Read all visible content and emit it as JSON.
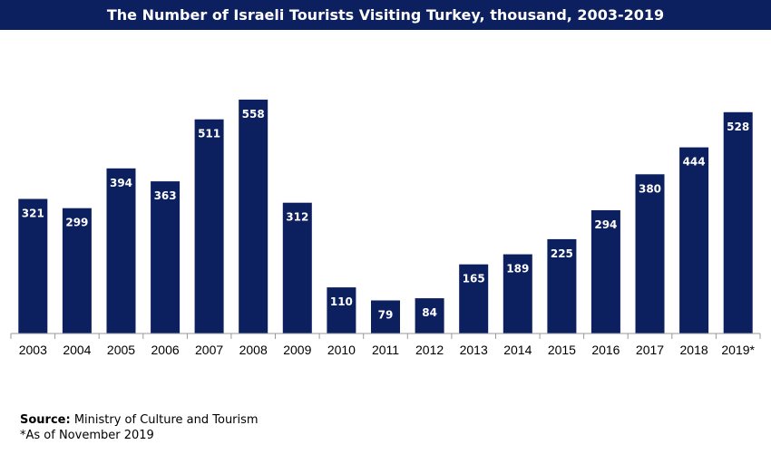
{
  "colors": {
    "title_bg": "#0c1f5e",
    "bar": "#0c1f5e",
    "axis": "#999999"
  },
  "notes": {
    "source_label": "Source:",
    "source_text": "Ministry of Culture and Tourism",
    "footnote": "*As of November 2019"
  },
  "chart_data": {
    "type": "bar",
    "title": "The Number of Israeli Tourists Visiting Turkey, thousand, 2003-2019",
    "categories": [
      "2003",
      "2004",
      "2005",
      "2006",
      "2007",
      "2008",
      "2009",
      "2010",
      "2011",
      "2012",
      "2013",
      "2014",
      "2015",
      "2016",
      "2017",
      "2018",
      "2019*"
    ],
    "values": [
      321,
      299,
      394,
      363,
      511,
      558,
      312,
      110,
      79,
      84,
      165,
      189,
      225,
      294,
      380,
      444,
      528
    ],
    "xlabel": "",
    "ylabel": "",
    "ylim": [
      0,
      600
    ],
    "grid": false,
    "data_labels": true
  }
}
